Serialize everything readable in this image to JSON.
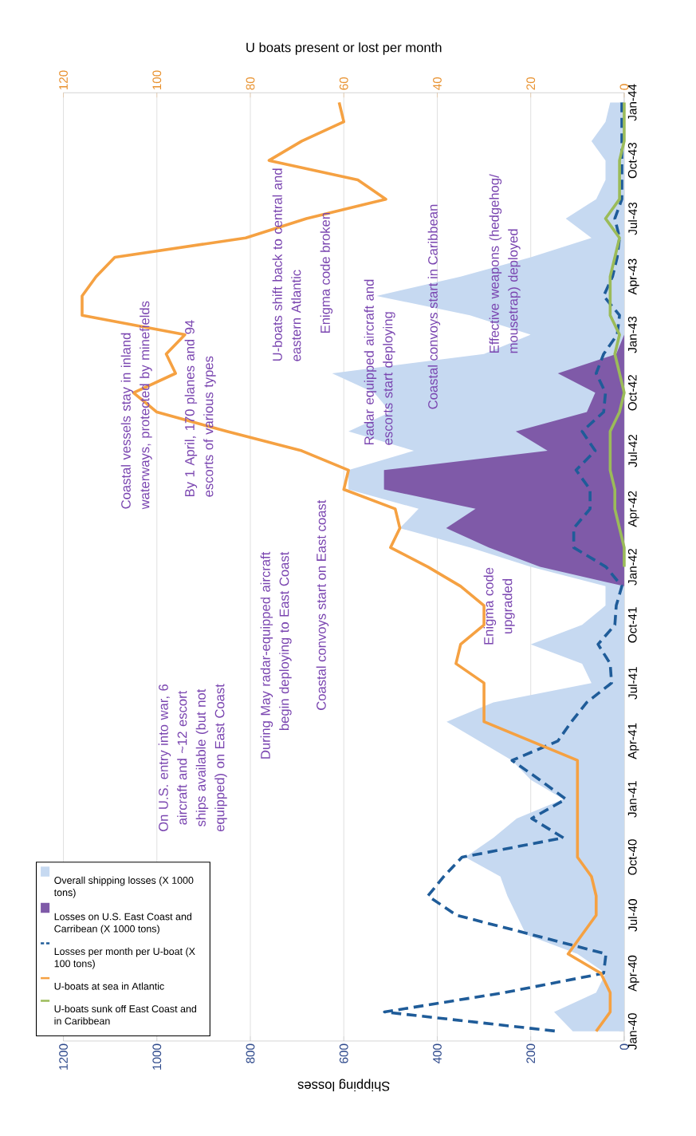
{
  "chart_data": {
    "type": "line",
    "orientation": "horizontal",
    "xlabel": "Shipping losses",
    "x2label": "U boats present or lost per month",
    "categories": [
      "Jan-44",
      null,
      null,
      "Oct-43",
      null,
      null,
      "Jul-43",
      null,
      null,
      "Apr-43",
      null,
      null,
      "Jan-43",
      null,
      null,
      "Oct-42",
      null,
      null,
      "Jul-42",
      null,
      null,
      "Apr-42",
      null,
      null,
      "Jan-42",
      null,
      null,
      "Oct-41",
      null,
      null,
      "Jul-41",
      null,
      null,
      "Apr-41",
      null,
      null,
      "Jan-41",
      null,
      null,
      "Oct-40",
      null,
      null,
      "Jul-40",
      null,
      null,
      "Apr-40",
      null,
      null,
      "Jan-40"
    ],
    "series": [
      {
        "name": "Overall shipping losses (X 1000 tons)",
        "type": "area",
        "color": "#c6d9f1",
        "values": [
          30,
          40,
          70,
          40,
          40,
          60,
          125,
          70,
          200,
          350,
          530,
          330,
          200,
          300,
          625,
          535,
          500,
          590,
          450,
          590,
          590,
          440,
          480,
          330,
          200,
          40,
          40,
          90,
          200,
          90,
          70,
          280,
          380,
          310,
          240,
          200,
          130,
          230,
          280,
          340,
          265,
          250,
          230,
          210,
          100,
          40,
          60,
          150,
          110
        ]
      },
      {
        "name": "Losses on U.S. East Coast and Carribean (X 1000 tons)",
        "type": "area",
        "color": "#7f5aa8",
        "values": [
          0,
          0,
          0,
          0,
          0,
          0,
          0,
          0,
          0,
          0,
          0,
          0,
          0,
          17,
          142,
          62,
          80,
          232,
          164,
          514,
          514,
          318,
          381,
          290,
          180,
          0,
          0,
          0,
          0,
          0,
          0,
          0,
          0,
          0,
          0,
          0,
          0,
          0,
          0,
          0,
          0,
          0,
          0,
          0,
          0,
          0,
          0,
          0,
          0
        ]
      },
      {
        "name": "Losses per month per U-boat (X 100 tons)",
        "type": "line",
        "line_style": "dashed",
        "color": "#1f5c99",
        "values": [
          5,
          5,
          5,
          5,
          5,
          5,
          20,
          10,
          15,
          25,
          44,
          10,
          15,
          44,
          60,
          40,
          44,
          90,
          62,
          103,
          73,
          73,
          108,
          108,
          39,
          5,
          17,
          20,
          56,
          30,
          27,
          80,
          113,
          142,
          240,
          181,
          125,
          198,
          130,
          347,
          386,
          420,
          359,
          198,
          39,
          44,
          257,
          513,
          142
        ]
      },
      {
        "name": "U-boats at sea in Atlantic",
        "type": "line",
        "axis": "x2",
        "color": "#f5a142",
        "values": [
          61,
          60,
          69,
          76,
          57,
          51,
          68,
          81,
          109,
          113,
          116,
          116,
          94,
          98,
          96,
          105,
          100,
          85,
          69,
          59,
          60,
          49,
          48,
          50,
          42,
          35,
          30,
          30,
          35,
          36,
          30,
          30,
          30,
          20,
          10,
          10,
          10,
          10,
          10,
          10,
          7,
          6,
          6,
          9,
          12,
          5,
          3,
          3,
          6
        ]
      },
      {
        "name": "U-boats sunk off East Coast and in Caribbean",
        "type": "line",
        "axis": "x2",
        "color": "#9bbb59",
        "values": [
          0,
          0,
          0,
          1,
          1,
          1,
          4,
          1,
          2,
          3,
          3,
          3,
          1,
          2,
          1,
          0,
          1,
          3,
          3,
          3,
          2,
          2,
          1,
          0,
          0,
          null,
          null,
          null,
          null,
          null,
          null,
          null,
          null,
          null,
          null,
          null,
          null,
          null,
          null,
          null,
          null,
          null,
          null,
          null,
          null,
          null,
          null,
          null,
          null
        ]
      }
    ],
    "xlim": [
      1200,
      0
    ],
    "xticks": [
      1200,
      1000,
      800,
      600,
      400,
      200,
      0
    ],
    "x2lim": [
      120,
      0
    ],
    "x2ticks": [
      120,
      100,
      80,
      60,
      40,
      20,
      0
    ],
    "grid": "x",
    "legend": "bottom left",
    "annotations": [
      "On U.S. entry into war, 6 aircraft and ~12 escort ships available (but not equipped) on East Coast",
      "During May radar-equipped aircraft begin deploying to East Coast",
      "Coastal convoys start on East coast",
      "Coastal vessels stay in inland waterways, protected by minefields",
      "By 1 April, 170 planes and 94 escorts of various types",
      "U-boats shift back to central and eastern Atlantic",
      "Enigma code broken",
      "Radar equipped aircraft and escorts start deploying",
      "Coastal convoys start in Caribbean",
      "Effective weapons (hedgehog/ mousetrap) deployed",
      "Enigma code upgraded"
    ]
  }
}
